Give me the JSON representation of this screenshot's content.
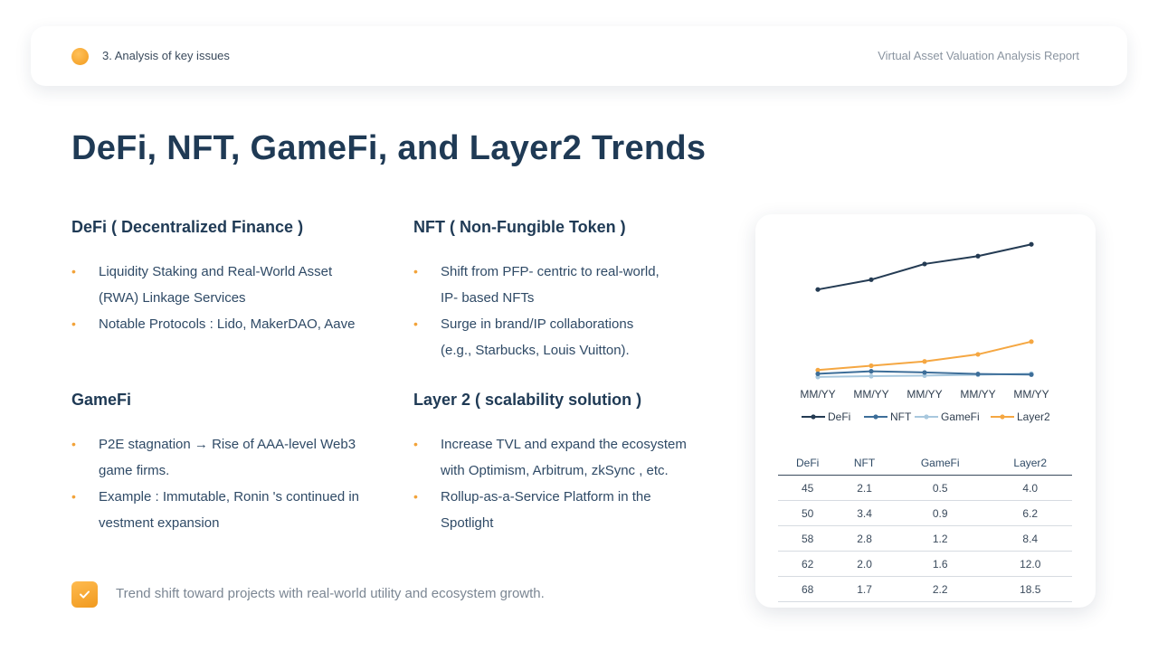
{
  "header": {
    "section": "3. Analysis of key issues",
    "report_title": "Virtual Asset Valuation Analysis Report"
  },
  "page_title": "DeFi, NFT, GameFi, and Layer2 Trends",
  "sections": {
    "defi": {
      "title": "DeFi ( Decentralized Finance )",
      "items": [
        [
          "Liquidity Staking and Real-World Asset",
          "(RWA) Linkage Services"
        ],
        [
          "Notable Protocols : Lido, MakerDAO, Aave"
        ]
      ]
    },
    "nft": {
      "title": "NFT ( Non-Fungible Token )",
      "items": [
        [
          "Shift from PFP- centric to real-world,",
          "IP- based NFTs"
        ],
        [
          "Surge in brand/IP collaborations",
          "(e.g., Starbucks, Louis Vuitton)."
        ]
      ]
    },
    "gamefi": {
      "title": "GameFi",
      "items": [
        [
          "P2E stagnation → Rise of AAA-level Web3",
          "game firms."
        ],
        [
          "Example : Immutable, Ronin 's continued in",
          "vestment expansion"
        ]
      ]
    },
    "layer2": {
      "title": "Layer 2 ( scalability solution )",
      "items": [
        [
          "Increase TVL and expand the ecosystem",
          "with Optimism, Arbitrum, zkSync , etc."
        ],
        [
          "Rollup-as-a-Service Platform in the",
          "Spotlight"
        ]
      ]
    }
  },
  "footer": {
    "text": "Trend shift toward projects with real-world utility and ecosystem growth."
  },
  "colors": {
    "accent": "#f2a33a",
    "title": "#1f3a55"
  },
  "chart_data": {
    "type": "line",
    "categories": [
      "MM/YY",
      "MM/YY",
      "MM/YY",
      "MM/YY",
      "MM/YY"
    ],
    "series": [
      {
        "name": "DeFi",
        "values": [
          45,
          50,
          58,
          62,
          68
        ],
        "color": "#243b53"
      },
      {
        "name": "NFT",
        "values": [
          2.1,
          3.4,
          2.8,
          2.0,
          1.7
        ],
        "color": "#3d6e99"
      },
      {
        "name": "GameFi",
        "values": [
          0.5,
          0.9,
          1.2,
          1.6,
          2.2
        ],
        "color": "#a8c8de"
      },
      {
        "name": "Layer2",
        "values": [
          4.0,
          6.2,
          8.4,
          12.0,
          18.5
        ],
        "color": "#f5a742"
      }
    ],
    "ylim": [
      0,
      75
    ],
    "legend": "bottom",
    "grid": false,
    "table": {
      "headers": [
        "DeFi",
        "NFT",
        "GameFi",
        "Layer2"
      ],
      "rows": [
        [
          "45",
          "2.1",
          "0.5",
          "4.0"
        ],
        [
          "50",
          "3.4",
          "0.9",
          "6.2"
        ],
        [
          "58",
          "2.8",
          "1.2",
          "8.4"
        ],
        [
          "62",
          "2.0",
          "1.6",
          "12.0"
        ],
        [
          "68",
          "1.7",
          "2.2",
          "18.5"
        ]
      ]
    }
  }
}
